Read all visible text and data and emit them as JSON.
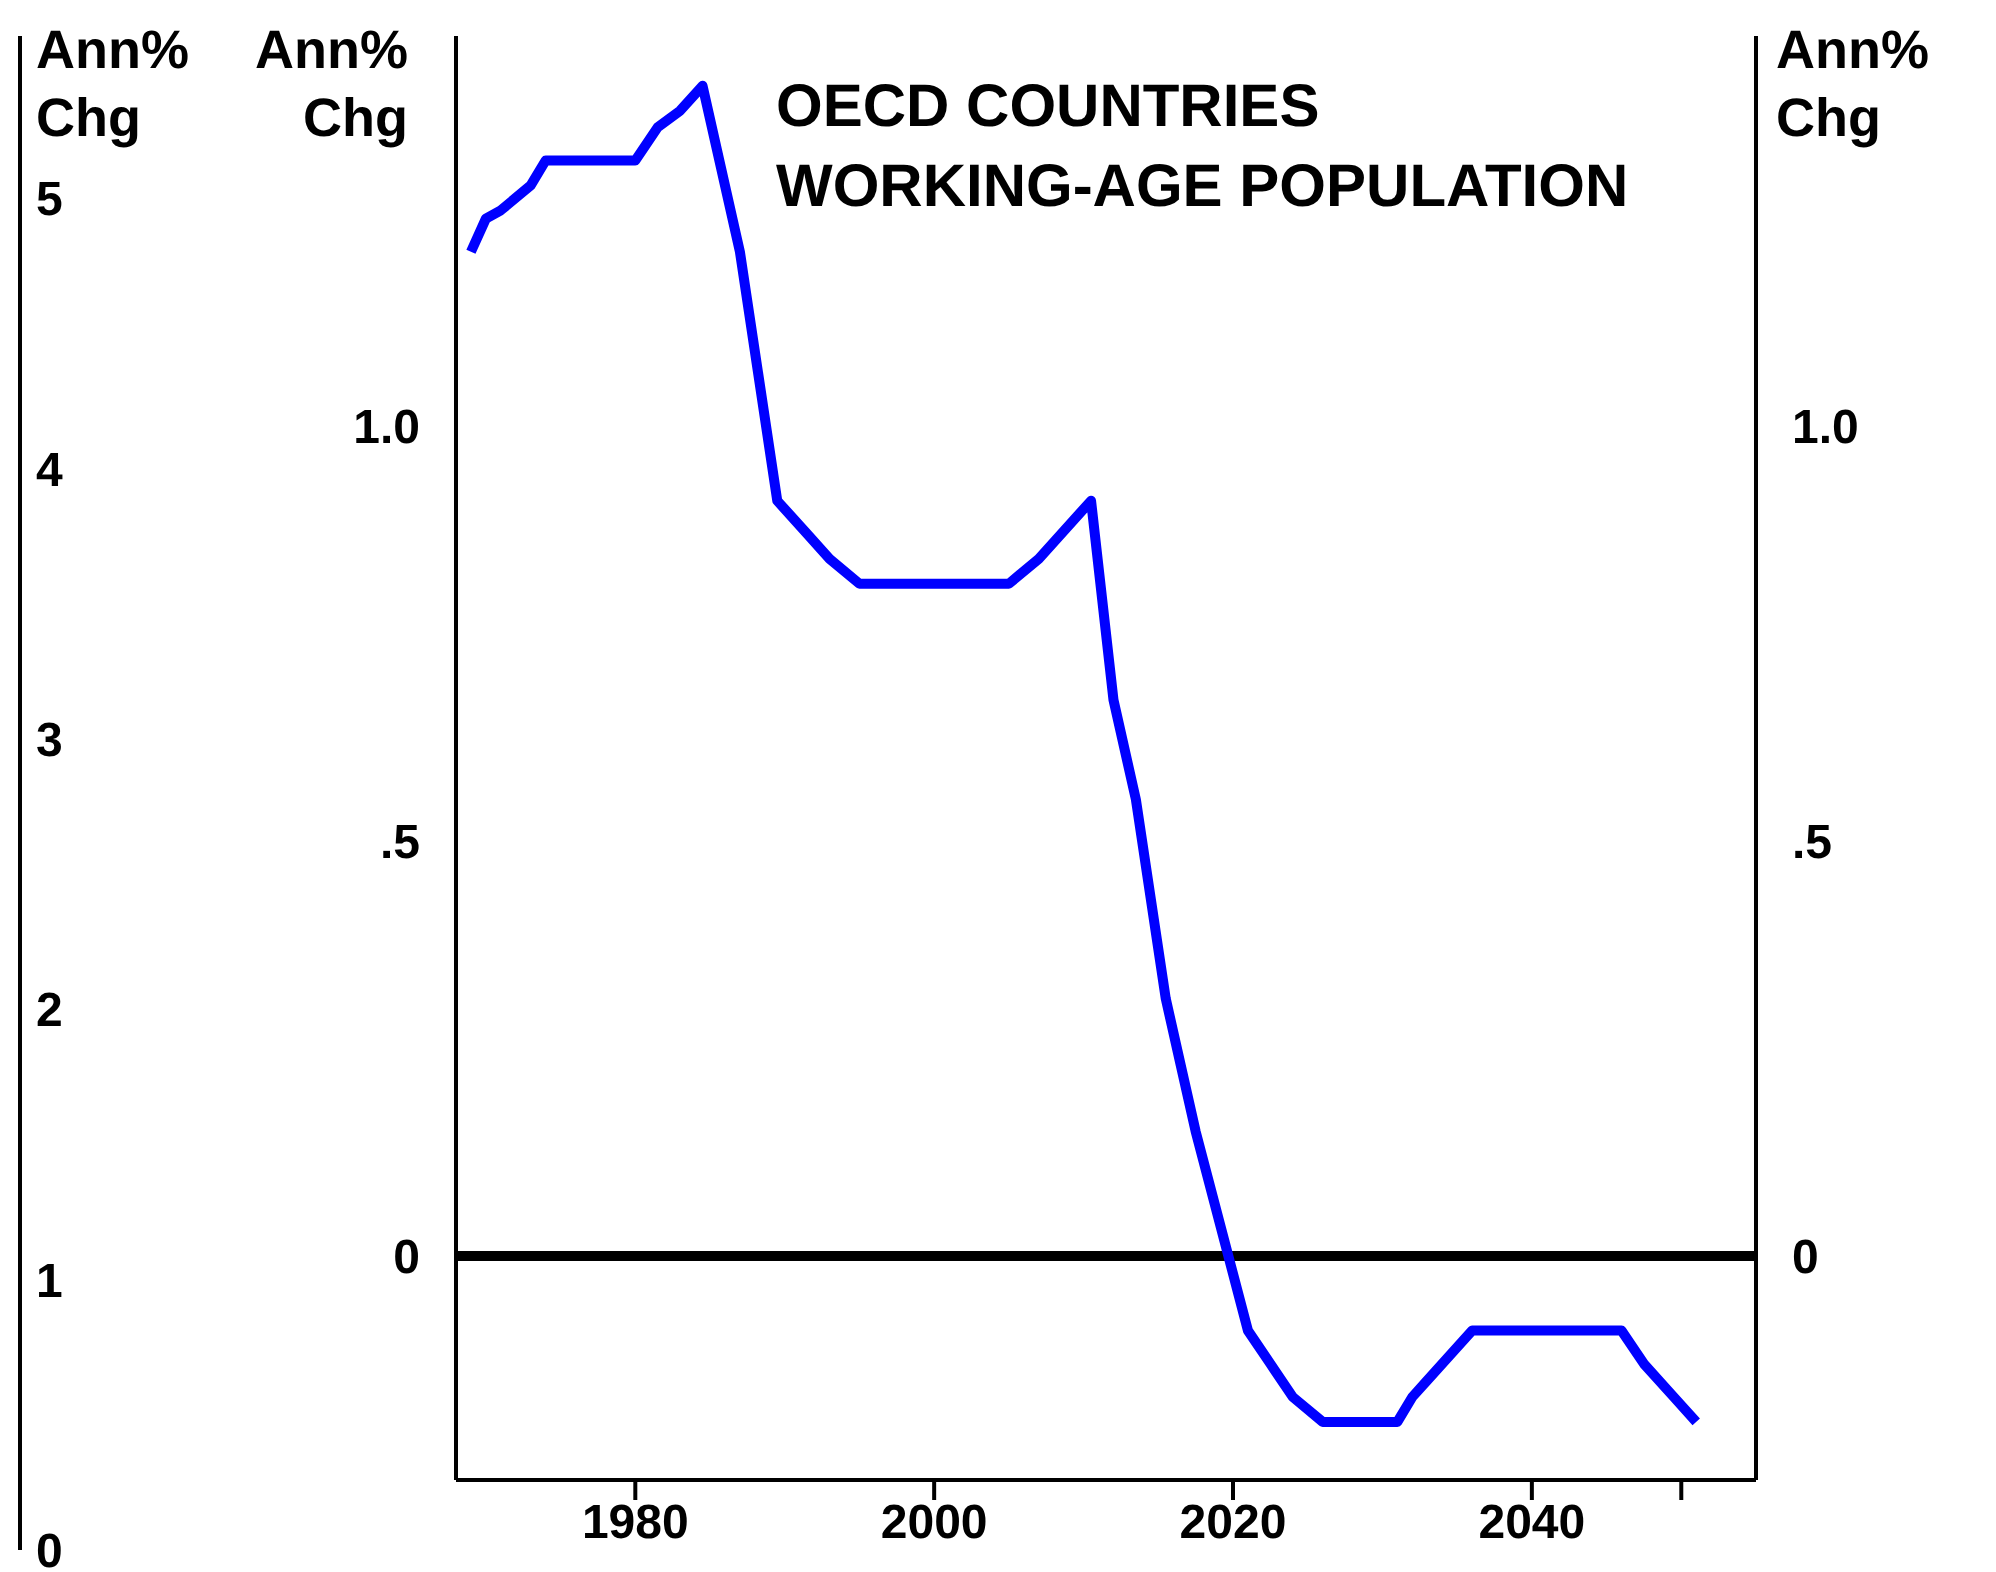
{
  "chart_data": {
    "type": "line",
    "title": "OECD COUNTRIES WORKING-AGE POPULATION",
    "ylabel": "Ann% Chg",
    "y2label": "Ann% Chg",
    "y3label": "Ann% Chg",
    "x": [
      1969,
      1970,
      1971,
      1973,
      1974,
      1980,
      1981.5,
      1983,
      1984.5,
      1987,
      1989.5,
      1991.5,
      1993,
      1995,
      2005,
      2007,
      2010.5,
      2012,
      2013.5,
      2015.5,
      2016.5,
      2017.5,
      2021,
      2022.5,
      2024,
      2026,
      2031,
      2032,
      2033,
      2036,
      2046,
      2047.5,
      2049.5,
      2051
    ],
    "series": [
      {
        "color": "#0000ff",
        "values": [
          1.21,
          1.25,
          1.26,
          1.29,
          1.32,
          1.32,
          1.36,
          1.38,
          1.41,
          1.21,
          0.91,
          0.87,
          0.84,
          0.81,
          0.81,
          0.84,
          0.91,
          0.67,
          0.55,
          0.31,
          0.23,
          0.15,
          -0.09,
          -0.13,
          -0.17,
          -0.2,
          -0.2,
          -0.17,
          -0.15,
          -0.09,
          -0.09,
          -0.13,
          -0.17,
          -0.2
        ]
      }
    ],
    "xlim": [
      1968,
      2055
    ],
    "xticks": [
      1980,
      2000,
      2020,
      2040,
      {
        "value": 2050,
        "label": null
      }
    ],
    "ylim": [
      -0.27,
      1.47
    ],
    "yticks": [
      0,
      {
        "value": 0.5,
        "label": ".5"
      },
      {
        "value": 1,
        "label": "1.0"
      }
    ],
    "y2lim": [
      -0.27,
      1.47
    ],
    "y2ticks": [
      0,
      {
        "value": 0.5,
        "label": ".5"
      },
      {
        "value": 1,
        "label": "1.0"
      }
    ],
    "y3lim": [
      0,
      5.6
    ],
    "y3ticks": [
      0,
      1,
      2,
      3,
      4,
      5
    ],
    "ref_lines": [
      {
        "axis": "y",
        "value": 0,
        "color": "#000000"
      }
    ],
    "grid": false,
    "legend": false,
    "marker": "none",
    "line_style": "solid"
  }
}
